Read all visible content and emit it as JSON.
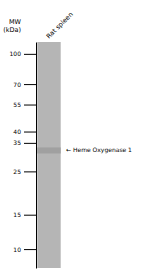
{
  "chart_data": {
    "type": "gel",
    "ylabel": "MW (kDa)",
    "categories": [
      "Rat spleen"
    ],
    "values": [
      32
    ],
    "color": "#a0a0a0",
    "annotation": "← Heme Oxygenase 1",
    "log": "y",
    "ylim": [
      8,
      115
    ],
    "yticks": [
      100,
      70,
      55,
      40,
      35,
      25,
      15,
      10
    ]
  }
}
